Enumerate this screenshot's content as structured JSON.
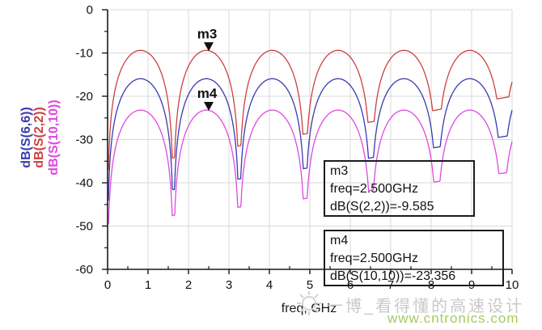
{
  "chart_data": {
    "type": "line",
    "title": "",
    "xlabel": "freq, GHz",
    "ylabel": "",
    "xlim": [
      0,
      10
    ],
    "ylim": [
      -60,
      0
    ],
    "xticks": [
      0,
      1,
      2,
      3,
      4,
      5,
      6,
      7,
      8,
      9,
      10
    ],
    "yticks": [
      0,
      -10,
      -20,
      -30,
      -40,
      -50,
      -60
    ],
    "x_minor_step_ghz": 0.5,
    "y_minor_step_db": 5,
    "grid": true,
    "null_period_ghz": 1.628,
    "sample_step_ghz": 0.01,
    "draw_order": [
      1,
      0,
      2
    ],
    "series": [
      {
        "name": "dB(S(6,6))",
        "color": "#3a3ab0",
        "peak_db": -15.95,
        "floor_base_db": -44.0,
        "floor_slope_db_per_ghz": 1.5
      },
      {
        "name": "dB(S(2,2))",
        "color": "#cc4040",
        "peak_db": -9.4,
        "floor_base_db": -37.0,
        "floor_slope_db_per_ghz": 1.7
      },
      {
        "name": "dB(S(10,10))",
        "color": "#dd4add",
        "peak_db": -23.2,
        "floor_base_db": -49.5,
        "floor_slope_db_per_ghz": 1.2
      }
    ],
    "markers": [
      {
        "id": "m3",
        "freq_ghz": 2.5,
        "value_db": -9.585,
        "series": "dB(S(2,2))"
      },
      {
        "id": "m4",
        "freq_ghz": 2.5,
        "value_db": -23.356,
        "series": "dB(S(10,10))"
      }
    ]
  },
  "marker_boxes": {
    "m3": {
      "line1": "m3",
      "line2": "freq=2.500GHz",
      "line3": "dB(S(2,2))=-9.585"
    },
    "m4": {
      "line1": "m4",
      "line2": "freq=2.500GHz",
      "line3": "dB(S(10,10))=-23.356"
    }
  },
  "watermark": {
    "text_cn": "一博_看得懂的高速设计",
    "url": "www.cntronics.com"
  },
  "colors": {
    "background": "#ffffff",
    "grid": "#d8d8d8",
    "axis": "#1a1a1a",
    "tick_label": "#111111",
    "marker": "#111111",
    "watermark_gray": "#c9c9c9",
    "watermark_green": "#a6cb5f"
  }
}
